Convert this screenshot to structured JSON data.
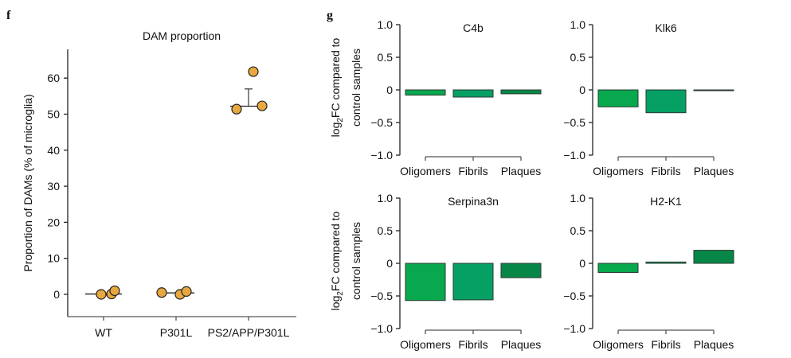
{
  "chart_data": [
    {
      "panel_label": "f",
      "type": "scatter",
      "title": "DAM proportion",
      "ylabel": "Proportion of DAMs (% of microglia)",
      "xlabel": "",
      "categories": [
        "WT",
        "P301L",
        "PS2/APP/P301L"
      ],
      "ylim": [
        -6,
        68
      ],
      "yticks": [
        0,
        10,
        20,
        30,
        40,
        50,
        60
      ],
      "grid": false,
      "point_color": "#e8a73f",
      "points": [
        {
          "category": "WT",
          "values": [
            0.0,
            0.1,
            1.0
          ]
        },
        {
          "category": "P301L",
          "values": [
            0.5,
            0.0,
            0.8
          ]
        },
        {
          "category": "PS2/APP/P301L",
          "values": [
            51.4,
            61.8,
            52.3
          ]
        }
      ],
      "center_line": [
        0.1,
        0.4,
        52.2
      ],
      "error_upper": [
        null,
        null,
        57.0
      ]
    },
    {
      "panel_label": "g",
      "type": "bar",
      "ylabel_line1": "log",
      "ylabel_sub": "2",
      "ylabel_line1_rest": "FC compared to",
      "ylabel_line2": "control samples",
      "ylim": [
        -1.0,
        1.0
      ],
      "yticks": [
        "1.0",
        "0.5",
        "0",
        "−0.5",
        "−1.0"
      ],
      "ytick_values": [
        1.0,
        0.5,
        0,
        -0.5,
        -1.0
      ],
      "categories": [
        "Oligomers",
        "Fibrils",
        "Plaques"
      ],
      "colors": [
        "#08a84e",
        "#06a065",
        "#078747"
      ],
      "panels": [
        {
          "title": "C4b",
          "values": [
            -0.08,
            -0.11,
            -0.06
          ]
        },
        {
          "title": "Klk6",
          "values": [
            -0.26,
            -0.35,
            -0.005
          ]
        },
        {
          "title": "Serpina3n",
          "values": [
            -0.57,
            -0.56,
            -0.22
          ]
        },
        {
          "title": "H2-K1",
          "values": [
            -0.14,
            0.02,
            0.2
          ]
        }
      ]
    }
  ]
}
